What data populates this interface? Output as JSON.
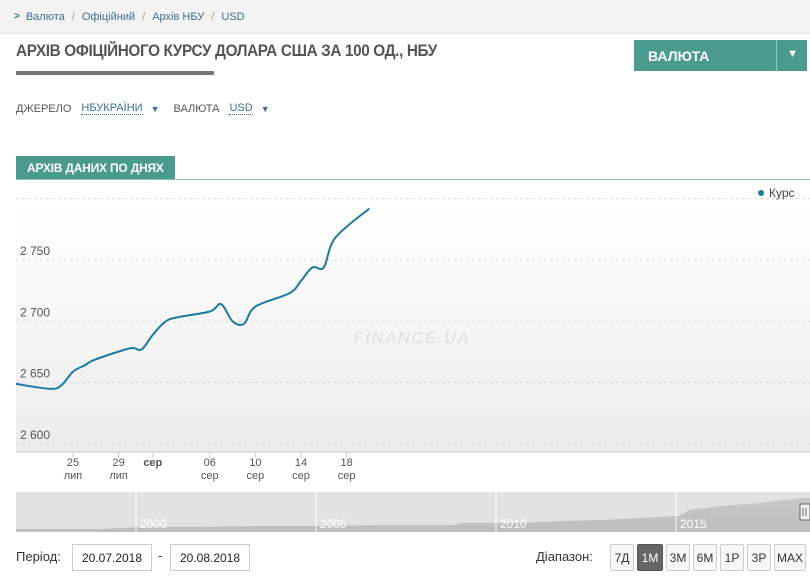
{
  "breadcrumb": [
    "Валюта",
    "Офіційний",
    "Архів НБУ",
    "USD"
  ],
  "page": {
    "title": "АРХІВ ОФІЦІЙНОГО КУРСУ ДОЛАРА США ЗА 100 ОД., НБУ"
  },
  "currency_dropdown": {
    "label": "ВАЛЮТА"
  },
  "filters": {
    "source_label": "ДЖЕРЕЛО",
    "source_value": "НБУКРАЇНИ",
    "currency_label": "ВАЛЮТА",
    "currency_value": "USD"
  },
  "archive_tab": {
    "label": "АРХІВ ДАНИХ ПО ДНЯХ"
  },
  "watermark": "FINANCE.UA",
  "colors": {
    "accent": "#4a9a8d",
    "series": "#1a7aa0"
  },
  "chart_data": {
    "type": "line",
    "series": [
      {
        "name": "Курс",
        "x": [
          "2018-07-20",
          "2018-07-23",
          "2018-07-24",
          "2018-07-25",
          "2018-07-26",
          "2018-07-27",
          "2018-07-30",
          "2018-07-31",
          "2018-08-01",
          "2018-08-02",
          "2018-08-03",
          "2018-08-06",
          "2018-08-07",
          "2018-08-08",
          "2018-08-09",
          "2018-08-10",
          "2018-08-13",
          "2018-08-14",
          "2018-08-15",
          "2018-08-16",
          "2018-08-17",
          "2018-08-20"
        ],
        "values": [
          2649,
          2645,
          2648,
          2659,
          2664,
          2669,
          2678,
          2677,
          2689,
          2699,
          2703,
          2708,
          2714,
          2700,
          2698,
          2712,
          2723,
          2733,
          2744,
          2744,
          2768,
          2792
        ]
      }
    ],
    "ylim": [
      2600,
      2800
    ],
    "yticks": [
      2600,
      2650,
      2700,
      2750
    ],
    "ytick_labels": [
      "2 600",
      "2 650",
      "2 700",
      "2 750"
    ],
    "xticks": [
      {
        "date": "2018-07-25",
        "day": "25",
        "month": "лип"
      },
      {
        "date": "2018-07-29",
        "day": "29",
        "month": "лип"
      },
      {
        "date": "2018-08-01",
        "day": "сер",
        "month": ""
      },
      {
        "date": "2018-08-06",
        "day": "06",
        "month": "сер"
      },
      {
        "date": "2018-08-10",
        "day": "10",
        "month": "сер"
      },
      {
        "date": "2018-08-14",
        "day": "14",
        "month": "сер"
      },
      {
        "date": "2018-08-18",
        "day": "18",
        "month": "сер"
      }
    ],
    "grid": true,
    "legend": {
      "position": "top-right",
      "label": "Курс"
    },
    "navigator_years": [
      "2000",
      "2005",
      "2010",
      "2015"
    ]
  },
  "period": {
    "label": "Період:",
    "from": "20.07.2018",
    "to": "20.08.2018"
  },
  "range": {
    "label": "Діапазон:",
    "buttons": [
      "7Д",
      "1М",
      "3М",
      "6М",
      "1Р",
      "3Р",
      "MAX"
    ],
    "active": "1М"
  }
}
